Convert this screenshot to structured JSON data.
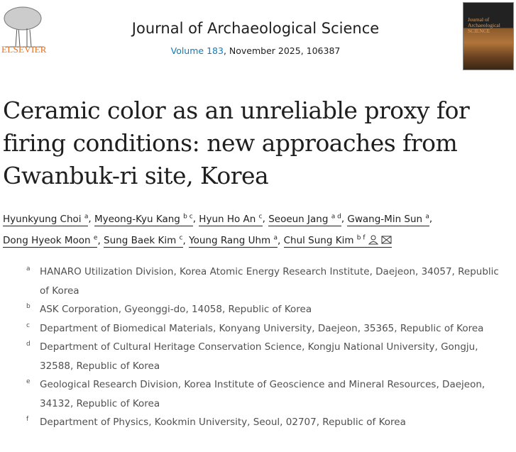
{
  "header": {
    "publisher": "ELSEVIER",
    "journal": "Journal of Archaeological Science",
    "volume_link": "Volume 183",
    "issue_info": ", November 2025, 106387",
    "cover_text": "Journal of Archaeological SCIENCE"
  },
  "article": {
    "title": "Ceramic color as an unreliable proxy for firing conditions: new approaches from Gwanbuk-ri site, Korea"
  },
  "authors": [
    {
      "name": "Hyunkyung Choi",
      "sup": "a"
    },
    {
      "name": "Myeong-Kyu Kang",
      "sup": "b c"
    },
    {
      "name": "Hyun Ho An",
      "sup": "c"
    },
    {
      "name": "Seoeun Jang",
      "sup": "a d"
    },
    {
      "name": "Gwang-Min Sun",
      "sup": "a"
    },
    {
      "name": "Dong Hyeok Moon",
      "sup": "e"
    },
    {
      "name": "Sung Baek Kim",
      "sup": "c"
    },
    {
      "name": "Young Rang Uhm",
      "sup": "a"
    },
    {
      "name": "Chul Sung Kim",
      "sup": "b f"
    }
  ],
  "affiliations": [
    {
      "label": "a",
      "text": "HANARO Utilization Division, Korea Atomic Energy Research Institute, Daejeon, 34057, Republic of Korea"
    },
    {
      "label": "b",
      "text": "ASK Corporation, Gyeonggi-do, 14058, Republic of Korea"
    },
    {
      "label": "c",
      "text": "Department of Biomedical Materials, Konyang University, Daejeon, 35365, Republic of Korea"
    },
    {
      "label": "d",
      "text": "Department of Cultural Heritage Conservation Science, Kongju National University, Gongju, 32588, Republic of Korea"
    },
    {
      "label": "e",
      "text": "Geological Research Division, Korea Institute of Geoscience and Mineral Resources, Daejeon, 34132, Republic of Korea"
    },
    {
      "label": "f",
      "text": "Department of Physics, Kookmin University, Seoul, 02707, Republic of Korea"
    }
  ],
  "colors": {
    "link": "#0c7dbb",
    "publisher": "#e9711c"
  }
}
